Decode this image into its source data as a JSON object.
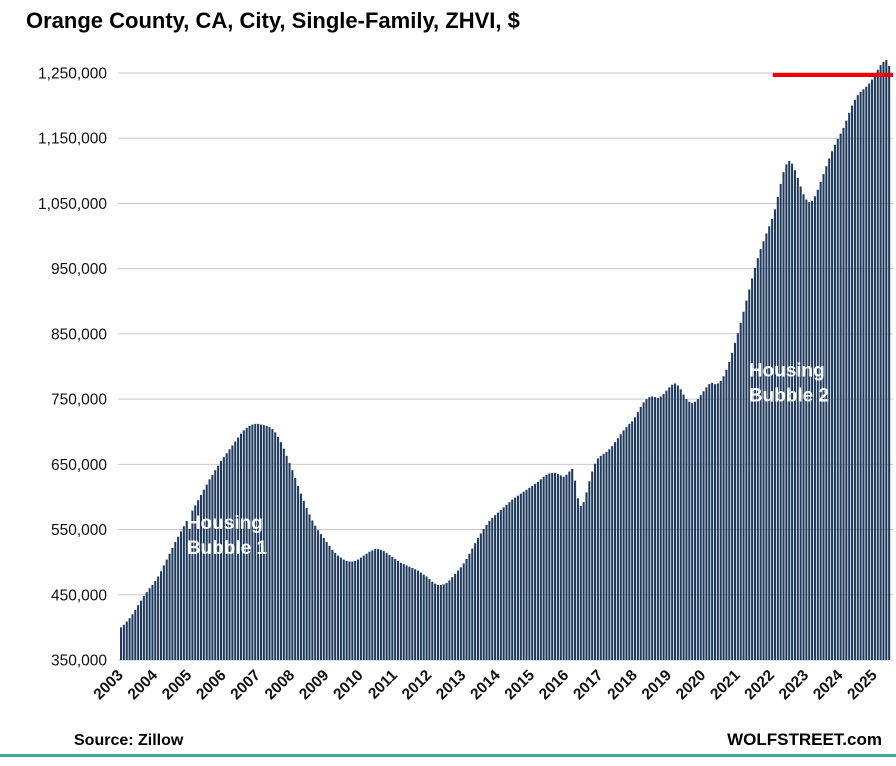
{
  "title": "Orange County, CA, City, Single-Family, ZHVI, $",
  "footer": {
    "source": "Source: Zillow",
    "brand": "WOLFSTREET.com"
  },
  "colors": {
    "bar": "#1f3a5c",
    "grid": "#c9c9c9",
    "red_line": "#f50000",
    "annotation": "#ffffff",
    "teal_rule": "#43a6a0",
    "text": "#111111"
  },
  "chart_data": {
    "type": "bar",
    "title": "Orange County, CA, City, Single-Family, ZHVI, $",
    "y_unit": "USD",
    "frequency": "monthly",
    "start": "2003-01",
    "end": "2025-06",
    "start_year": 2003,
    "grid": true,
    "ylim": [
      350000,
      1290000
    ],
    "ytick_values": [
      350000,
      450000,
      550000,
      650000,
      750000,
      850000,
      950000,
      1050000,
      1150000,
      1250000
    ],
    "ytick_labels": [
      "350,000",
      "450,000",
      "550,000",
      "650,000",
      "750,000",
      "850,000",
      "950,000",
      "1,050,000",
      "1,150,000",
      "1,250,000"
    ],
    "x_tick_years": [
      2003,
      2004,
      2005,
      2006,
      2007,
      2008,
      2009,
      2010,
      2011,
      2012,
      2013,
      2014,
      2015,
      2016,
      2017,
      2018,
      2019,
      2020,
      2021,
      2022,
      2023,
      2024,
      2025
    ],
    "values": [
      400000,
      404000,
      409000,
      414000,
      420000,
      427000,
      434000,
      441000,
      448000,
      454000,
      460000,
      465000,
      471000,
      478000,
      486000,
      495000,
      504000,
      513000,
      522000,
      531000,
      539000,
      547000,
      555000,
      563000,
      571000,
      579000,
      587000,
      595000,
      603000,
      611000,
      619000,
      627000,
      634000,
      641000,
      648000,
      655000,
      661000,
      667000,
      673000,
      679000,
      685000,
      691000,
      697000,
      702000,
      706000,
      709000,
      711000,
      712000,
      712000,
      711000,
      710000,
      709000,
      707000,
      704000,
      699000,
      692000,
      684000,
      674000,
      663000,
      652000,
      641000,
      629000,
      617000,
      605000,
      594000,
      583000,
      573000,
      564000,
      556000,
      549000,
      543000,
      537000,
      531000,
      525000,
      519000,
      514000,
      510000,
      507000,
      504000,
      502000,
      501000,
      501000,
      502000,
      504000,
      507000,
      510000,
      513000,
      516000,
      518000,
      520000,
      520000,
      519000,
      517000,
      514000,
      511000,
      508000,
      505000,
      502000,
      499000,
      497000,
      495000,
      493000,
      491000,
      489000,
      487000,
      484000,
      481000,
      478000,
      474000,
      470000,
      467000,
      465000,
      465000,
      466000,
      468000,
      472000,
      477000,
      482000,
      487000,
      492000,
      498000,
      505000,
      513000,
      521000,
      529000,
      537000,
      544000,
      551000,
      557000,
      563000,
      568000,
      572000,
      576000,
      580000,
      584000,
      588000,
      592000,
      596000,
      599000,
      602000,
      605000,
      608000,
      611000,
      614000,
      617000,
      620000,
      623000,
      627000,
      631000,
      634000,
      636000,
      637000,
      637000,
      635000,
      633000,
      631000,
      634000,
      639000,
      643000,
      625000,
      598000,
      586000,
      592000,
      607000,
      624000,
      639000,
      651000,
      659000,
      663000,
      666000,
      669000,
      673000,
      678000,
      684000,
      690000,
      696000,
      702000,
      707000,
      712000,
      716000,
      722000,
      730000,
      738000,
      745000,
      750000,
      753000,
      754000,
      753000,
      752000,
      754000,
      758000,
      763000,
      768000,
      772000,
      774000,
      771000,
      765000,
      757000,
      750000,
      746000,
      744000,
      746000,
      750000,
      756000,
      762000,
      768000,
      773000,
      775000,
      773000,
      774000,
      778000,
      785000,
      795000,
      807000,
      821000,
      836000,
      851000,
      867000,
      884000,
      901000,
      918000,
      935000,
      951000,
      966000,
      980000,
      992000,
      1004000,
      1015000,
      1026000,
      1041000,
      1060000,
      1080000,
      1098000,
      1110000,
      1115000,
      1111000,
      1101000,
      1089000,
      1076000,
      1064000,
      1056000,
      1052000,
      1054000,
      1061000,
      1071000,
      1083000,
      1095000,
      1107000,
      1119000,
      1130000,
      1140000,
      1149000,
      1157000,
      1166000,
      1177000,
      1189000,
      1200000,
      1209000,
      1216000,
      1221000,
      1225000,
      1229000,
      1234000,
      1240000,
      1247000,
      1255000,
      1262000,
      1267000,
      1270000,
      1261000
    ],
    "red_line": {
      "value": 1247000,
      "from_year": 2022.05
    },
    "annotations": [
      {
        "name": "housing-bubble-1",
        "lines": [
          "Housing",
          "Bubble 1"
        ],
        "year": 2004.95,
        "value": 563000
      },
      {
        "name": "housing-bubble-2",
        "lines": [
          "Housing",
          "Bubble 2"
        ],
        "year": 2021.35,
        "value": 797000
      }
    ]
  }
}
